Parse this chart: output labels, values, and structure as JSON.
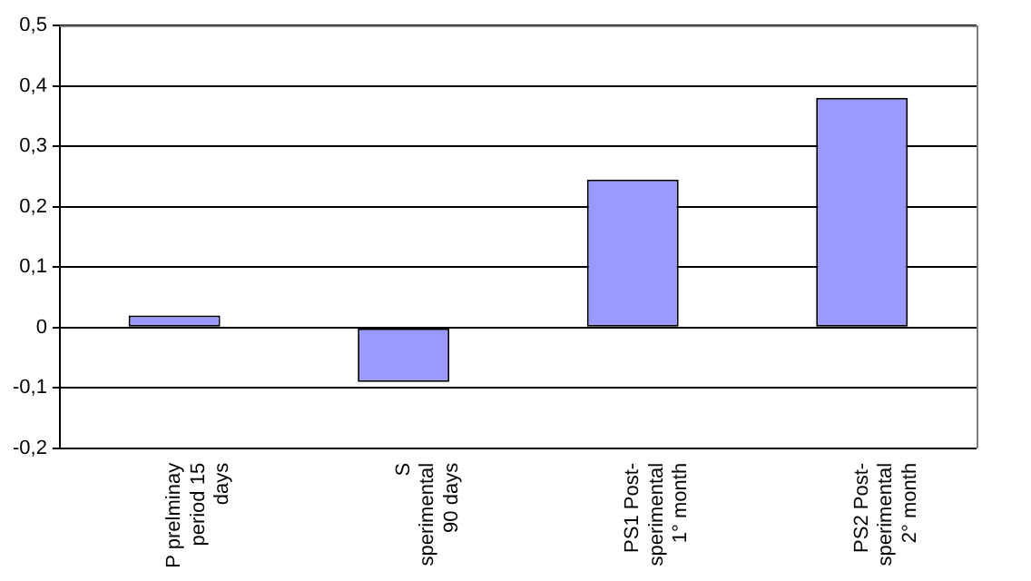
{
  "chart_data": {
    "type": "bar",
    "categories": [
      "P prelminay\nperiod 15\ndays",
      "S\nsperimental\n90 days",
      "PS1 Post-\nsperimental\n1° month",
      "PS2 Post-\nsperimental\n2° month"
    ],
    "values": [
      0.02,
      -0.09,
      0.245,
      0.38
    ],
    "color": "#9999ff",
    "ylim": [
      -0.2,
      0.5
    ],
    "yticks": [
      {
        "value": -0.2,
        "label": "-0,2"
      },
      {
        "value": -0.1,
        "label": "-0,1"
      },
      {
        "value": 0,
        "label": "0"
      },
      {
        "value": 0.1,
        "label": "0,1"
      },
      {
        "value": 0.2,
        "label": "0,2"
      },
      {
        "value": 0.3,
        "label": "0,3"
      },
      {
        "value": 0.4,
        "label": "0,4"
      },
      {
        "value": 0.5,
        "label": "0,5"
      }
    ],
    "grid": "y",
    "legend": false
  }
}
